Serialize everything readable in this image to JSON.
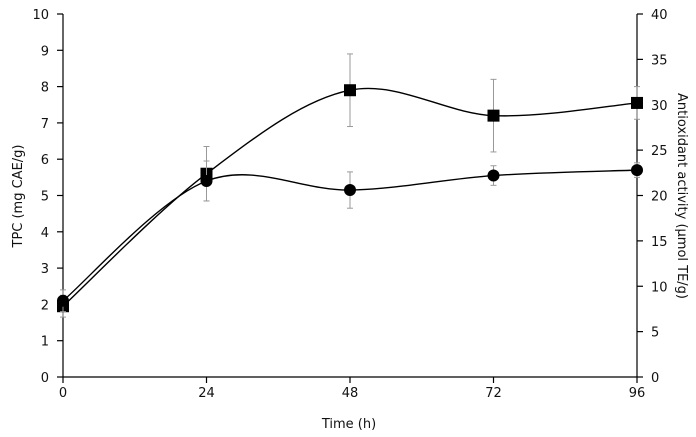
{
  "chart_data": {
    "type": "line",
    "xlabel": "Time (h)",
    "ylabel_left": "TPC (mg CAE/g)",
    "ylabel_right": "Antioxidant activity (μmol TE/g)",
    "x_ticks": [
      "0",
      "24",
      "48",
      "72",
      "96"
    ],
    "y_left_ticks": [
      "0",
      "1",
      "2",
      "3",
      "4",
      "5",
      "6",
      "7",
      "8",
      "9",
      "10"
    ],
    "y_right_ticks": [
      "0",
      "5",
      "10",
      "15",
      "20",
      "25",
      "30",
      "35",
      "40"
    ],
    "xlim": [
      0,
      96
    ],
    "ylim_left": [
      0,
      10
    ],
    "ylim_right": [
      0,
      40
    ],
    "grid": false,
    "series": [
      {
        "marker": "square",
        "axis": "left",
        "x": [
          0,
          24,
          48,
          72,
          96
        ],
        "values": [
          1.95,
          5.6,
          7.9,
          7.2,
          7.55
        ],
        "error": [
          0.3,
          0.75,
          1.0,
          1.0,
          0.45
        ]
      },
      {
        "marker": "circle",
        "axis": "left",
        "x": [
          0,
          24,
          48,
          72,
          96
        ],
        "values": [
          2.1,
          5.4,
          5.15,
          5.55,
          5.7
        ],
        "error": [
          0.3,
          0.55,
          0.5,
          0.27,
          0.2
        ]
      }
    ]
  }
}
